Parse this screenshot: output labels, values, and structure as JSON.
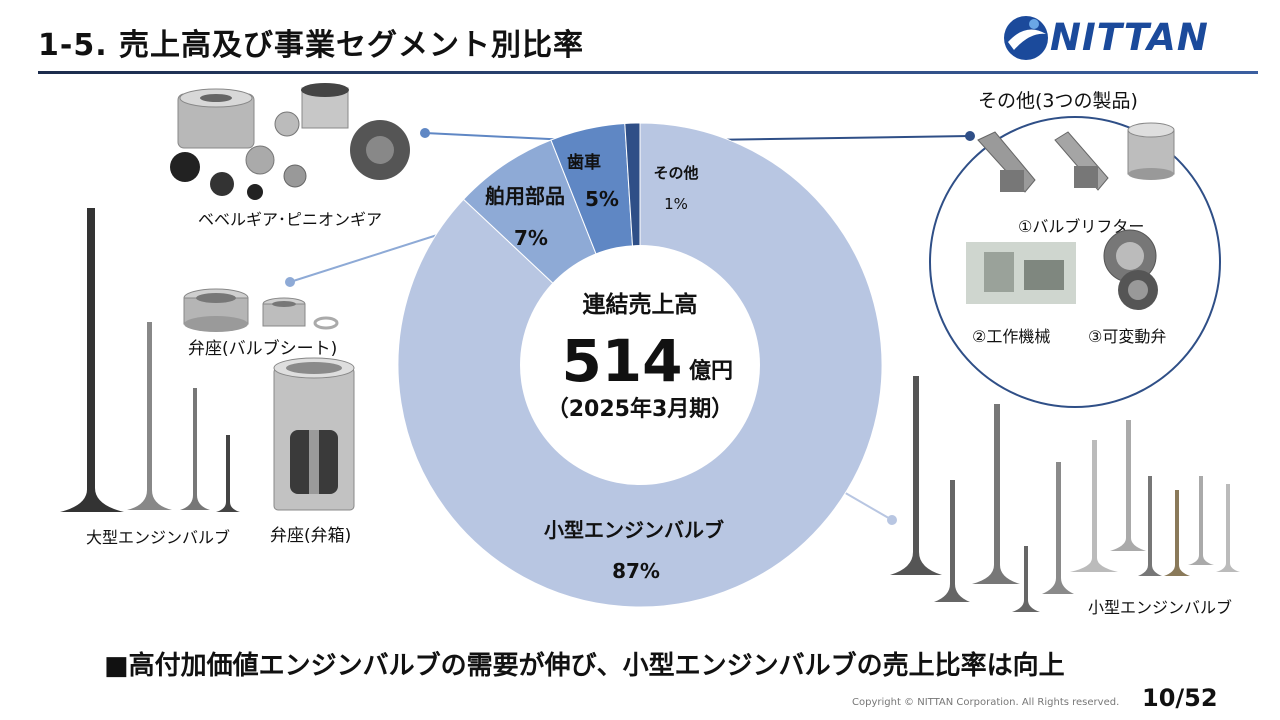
{
  "header": {
    "title": "1-5. 売上高及び事業セグメント別比率",
    "logo_text": "NITTAN"
  },
  "chart_data": {
    "type": "pie",
    "style": "donut",
    "categories": [
      "小型エンジンバルブ",
      "舶用部品",
      "歯車",
      "その他"
    ],
    "values": [
      87,
      7,
      5,
      1
    ],
    "value_labels": [
      "87%",
      "7%",
      "5%",
      "1%"
    ],
    "center": {
      "title": "連結売上高",
      "value": "514",
      "unit": "億円",
      "period": "（2025年3月期）"
    },
    "colors": [
      "#b8c6e2",
      "#8eaad6",
      "#5f87c4",
      "#2f4f87"
    ]
  },
  "product_captions": {
    "bevel_gear": "ベベルギア･ピニオンギア",
    "valve_seat": "弁座(バルブシート)",
    "valve_box": "弁座(弁箱)",
    "large_valve": "大型エンジンバルブ",
    "small_valve": "小型エンジンバルブ",
    "other_title": "その他(3つの製品)",
    "valve_lifter": "①バルブリフター",
    "machine_tool": "②工作機械",
    "variable_valve": "③可変動弁"
  },
  "footer": {
    "conclusion": "■高付加価値エンジンバルブの需要が伸び、小型エンジンバルブの売上比率は向上",
    "copyright": "Copyright © NITTAN Corporation. All Rights reserved.",
    "page": "10/52"
  }
}
